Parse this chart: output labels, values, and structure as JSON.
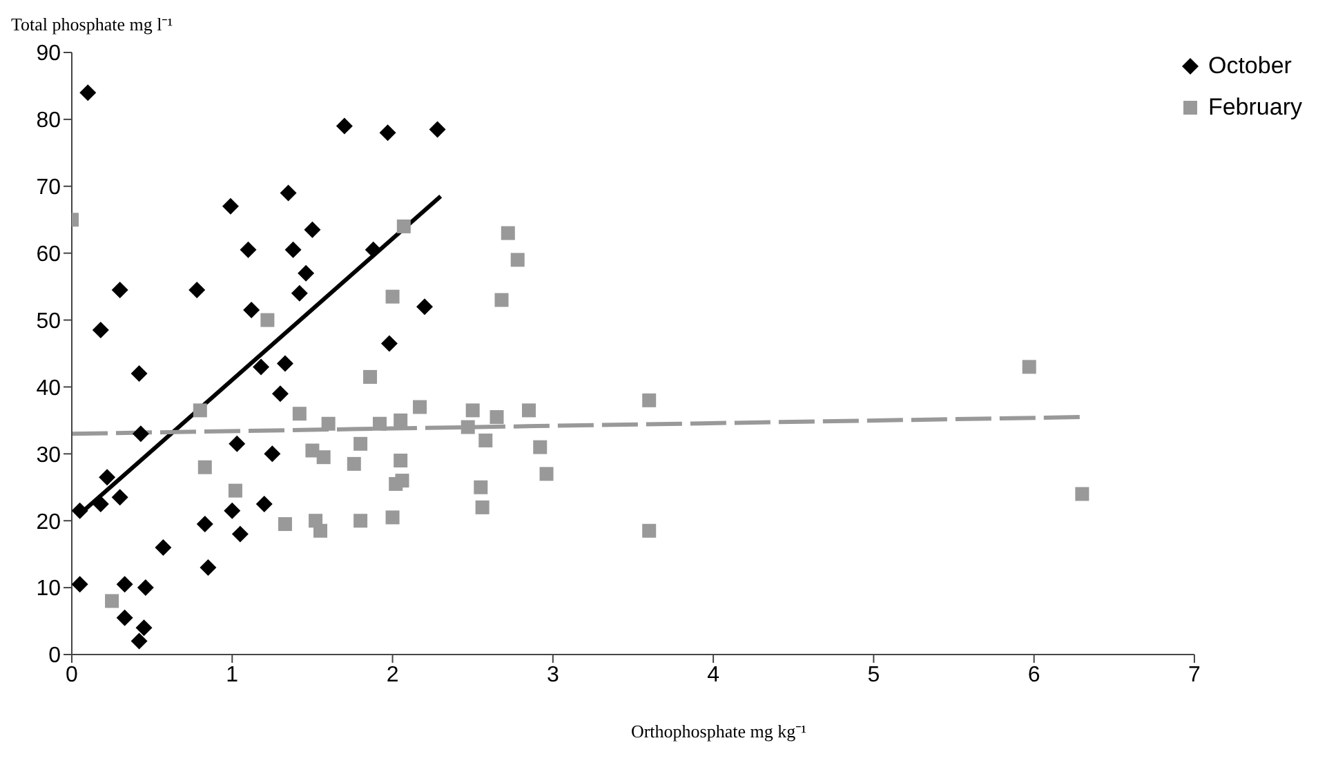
{
  "chart_data": {
    "type": "scatter",
    "xlabel": "Orthophosphate mg kg⁻¹",
    "ylabel": "Total phosphate mg l⁻¹",
    "xlim": [
      0,
      7
    ],
    "xticks": [
      0,
      1,
      2,
      3,
      4,
      5,
      6,
      7
    ],
    "ylim": [
      0,
      90
    ],
    "yticks": [
      0,
      10,
      20,
      30,
      40,
      50,
      60,
      70,
      80,
      90
    ],
    "legend": "top right",
    "series": [
      {
        "name": "October",
        "color": "#000000",
        "marker": "diamond",
        "x": [
          0.05,
          0.05,
          0.1,
          0.18,
          0.18,
          0.22,
          0.3,
          0.3,
          0.33,
          0.33,
          0.42,
          0.42,
          0.45,
          0.46,
          0.43,
          0.57,
          0.78,
          0.83,
          0.85,
          0.99,
          1.0,
          1.03,
          1.05,
          1.1,
          1.12,
          1.18,
          1.2,
          1.25,
          1.3,
          1.33,
          1.35,
          1.38,
          1.42,
          1.46,
          1.5,
          1.7,
          1.88,
          1.97,
          1.98,
          2.2,
          2.28
        ],
        "values": [
          10.5,
          21.5,
          84,
          22.5,
          48.5,
          26.5,
          23.5,
          54.5,
          10.5,
          5.5,
          42,
          2,
          4,
          10,
          33,
          16,
          54.5,
          19.5,
          13,
          67,
          21.5,
          31.5,
          18,
          60.5,
          51.5,
          43,
          22.5,
          30,
          39,
          43.5,
          69,
          60.5,
          54,
          57,
          63.5,
          79,
          60.5,
          78,
          46.5,
          52,
          78.5
        ]
      },
      {
        "name": "February",
        "color": "#999999",
        "marker": "square",
        "x": [
          0,
          0.25,
          0.8,
          0.83,
          1.02,
          1.22,
          1.33,
          1.42,
          1.5,
          1.52,
          1.55,
          1.57,
          1.6,
          1.76,
          1.8,
          1.8,
          1.86,
          1.92,
          2.0,
          2.0,
          2.02,
          2.05,
          2.05,
          2.06,
          2.07,
          2.17,
          2.47,
          2.5,
          2.55,
          2.56,
          2.58,
          2.65,
          2.68,
          2.72,
          2.78,
          2.85,
          2.92,
          2.96,
          3.6,
          3.6,
          5.97,
          6.3
        ],
        "values": [
          65,
          8,
          36.5,
          28,
          24.5,
          50,
          19.5,
          36,
          30.5,
          20,
          18.5,
          29.5,
          34.5,
          28.5,
          31.5,
          20,
          41.5,
          34.5,
          53.5,
          20.5,
          25.5,
          35,
          29,
          26,
          64,
          37,
          34,
          36.5,
          25,
          22,
          32,
          35.5,
          53,
          63,
          59,
          36.5,
          31,
          27,
          38,
          18.5,
          43,
          24
        ]
      },
      {
        "type": "line",
        "color": "#000000",
        "line_style": "solid",
        "marker": "none",
        "x": [
          0.05,
          2.3
        ],
        "values": [
          21,
          68.5
        ]
      },
      {
        "type": "line",
        "color": "#999999",
        "line_style": "dashed",
        "marker": "none",
        "x": [
          0,
          6.3
        ],
        "values": [
          33,
          35.5
        ]
      }
    ]
  }
}
